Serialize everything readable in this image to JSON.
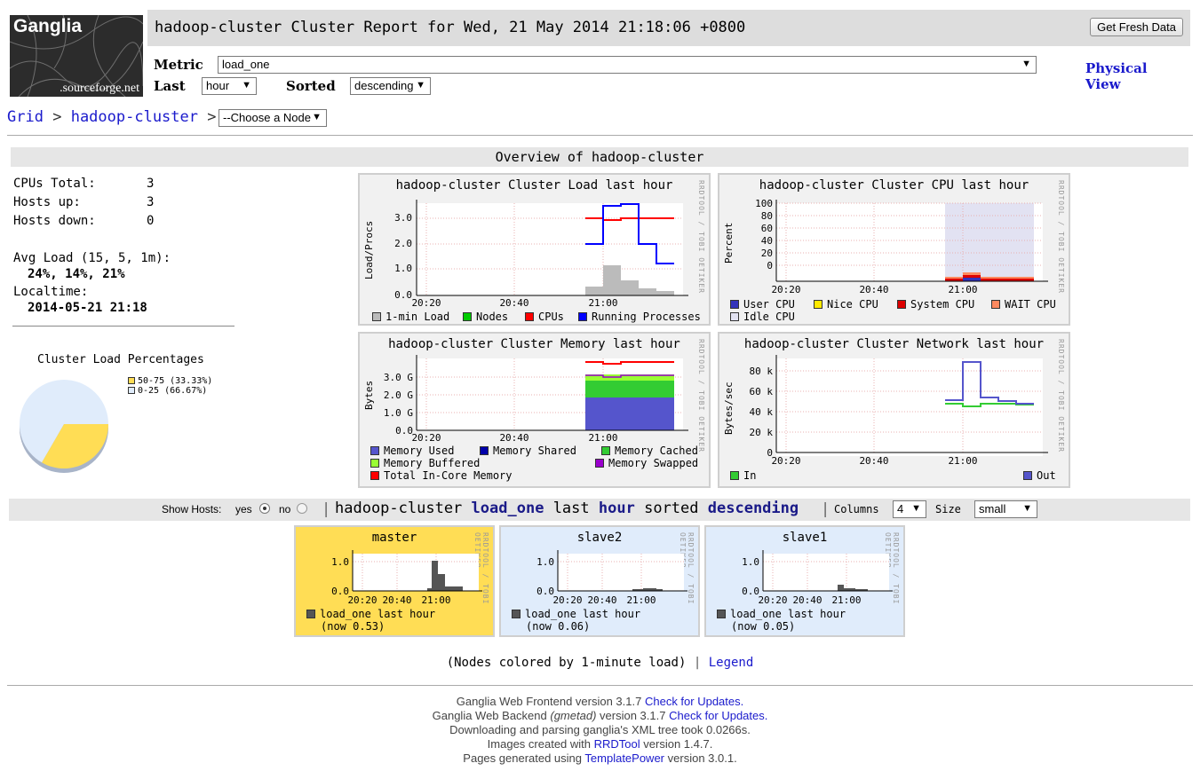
{
  "header": {
    "logo_text": "Ganglia",
    "logo_sub": ".sourceforge.net",
    "title": "hadoop-cluster Cluster Report for Wed, 21 May 2014 21:18:06 +0800",
    "fresh_button": "Get Fresh Data",
    "metric_label": "Metric",
    "metric_value": "load_one",
    "last_label": "Last",
    "last_value": "hour",
    "sorted_label": "Sorted",
    "sorted_value": "descending",
    "physical_view_1": "Physical",
    "physical_view_2": "View"
  },
  "breadcrumb": {
    "grid": "Grid",
    "sep1": ">",
    "cluster": "hadoop-cluster",
    "sep2": ">",
    "node_select": "--Choose a Node"
  },
  "overview": {
    "title": "Overview of hadoop-cluster",
    "cpus_total_label": "CPUs Total:",
    "cpus_total": "3",
    "hosts_up_label": "Hosts up:",
    "hosts_up": "3",
    "hosts_down_label": "Hosts down:",
    "hosts_down": "0",
    "avg_load_label": "Avg Load (15, 5, 1m):",
    "avg_load": "24%, 14%, 21%",
    "localtime_label": "Localtime:",
    "localtime": "2014-05-21 21:18"
  },
  "pie": {
    "title": "Cluster Load Percentages",
    "slices": [
      {
        "label": "50-75 (33.33%)",
        "value": 33.33,
        "color": "#ffdd55"
      },
      {
        "label": "0-25 (66.67%)",
        "value": 66.67,
        "color": "#e0ecfb"
      }
    ]
  },
  "graphs": {
    "rrd_credit": "RRDTOOL / TOBI OETIKER",
    "load": {
      "title": "hadoop-cluster Cluster Load last hour",
      "ylabel": "Load/Procs",
      "yticks": [
        "3.0",
        "2.0",
        "1.0",
        "0.0"
      ],
      "xticks": [
        "20:20",
        "20:40",
        "21:00"
      ],
      "legend": [
        {
          "label": "1-min Load",
          "color": "#bbbbbb"
        },
        {
          "label": "Nodes",
          "color": "#00cc00"
        },
        {
          "label": "CPUs",
          "color": "#ff0000"
        },
        {
          "label": "Running Processes",
          "color": "#0000ff"
        }
      ]
    },
    "cpu": {
      "title": "hadoop-cluster Cluster CPU last hour",
      "ylabel": "Percent",
      "yticks": [
        "100",
        "80",
        "60",
        "40",
        "20",
        "0"
      ],
      "xticks": [
        "20:20",
        "20:40",
        "21:00"
      ],
      "legend": [
        {
          "label": "User CPU",
          "color": "#3333bb"
        },
        {
          "label": "Nice CPU",
          "color": "#ffea00"
        },
        {
          "label": "System CPU",
          "color": "#dd0000"
        },
        {
          "label": "WAIT CPU",
          "color": "#ff8a60"
        },
        {
          "label": "Idle CPU",
          "color": "#e2e2f2"
        }
      ]
    },
    "memory": {
      "title": "hadoop-cluster Cluster Memory last hour",
      "ylabel": "Bytes",
      "yticks": [
        "3.0 G",
        "2.0 G",
        "1.0 G",
        "0.0"
      ],
      "xticks": [
        "20:20",
        "20:40",
        "21:00"
      ],
      "legend": [
        {
          "label": "Memory Used",
          "color": "#5555cc"
        },
        {
          "label": "Memory Shared",
          "color": "#0000aa"
        },
        {
          "label": "Memory Cached",
          "color": "#33cc33"
        },
        {
          "label": "Memory Buffered",
          "color": "#99ff33"
        },
        {
          "label": "Memory Swapped",
          "color": "#9900cc"
        },
        {
          "label": "Total In-Core Memory",
          "color": "#ff0000"
        }
      ]
    },
    "network": {
      "title": "hadoop-cluster Cluster Network last hour",
      "ylabel": "Bytes/sec",
      "yticks": [
        "80 k",
        "60 k",
        "40 k",
        "20 k",
        "0"
      ],
      "xticks": [
        "20:20",
        "20:40",
        "21:00"
      ],
      "legend": [
        {
          "label": "In",
          "color": "#33cc33"
        },
        {
          "label": "Out",
          "color": "#5555cc"
        }
      ]
    }
  },
  "hosts_bar": {
    "show_hosts": "Show Hosts:",
    "yes": "yes",
    "no": "no",
    "sep": "|",
    "w_cluster": "hadoop-cluster",
    "w_metric": "load_one",
    "w_last": "last",
    "w_range": "hour",
    "w_sorted": "sorted",
    "w_order": "descending",
    "columns_label": "Columns",
    "columns_value": "4",
    "size_label": "Size",
    "size_value": "small"
  },
  "hosts": [
    {
      "name": "master",
      "yticks": [
        "1.0",
        "0.0"
      ],
      "xticks": [
        "20:20",
        "20:40",
        "21:00"
      ],
      "legend": "load_one last hour",
      "now": "(now 0.53)",
      "bg": "#ffdd55"
    },
    {
      "name": "slave2",
      "yticks": [
        "1.0",
        "0.0"
      ],
      "xticks": [
        "20:20",
        "20:40",
        "21:00"
      ],
      "legend": "load_one last hour",
      "now": "(now 0.06)",
      "bg": "#e0ecfb"
    },
    {
      "name": "slave1",
      "yticks": [
        "1.0",
        "0.0"
      ],
      "xticks": [
        "20:20",
        "20:40",
        "21:00"
      ],
      "legend": "load_one last hour",
      "now": "(now 0.05)",
      "bg": "#e0ecfb"
    }
  ],
  "legend_note": {
    "text": "(Nodes colored by 1-minute load)",
    "sep": "|",
    "link": "Legend"
  },
  "footer": {
    "l1a": "Ganglia Web Frontend version 3.1.7",
    "l1b": "Check for Updates.",
    "l2a": "Ganglia Web Backend",
    "l2b": "(gmetad)",
    "l2c": "version 3.1.7",
    "l2d": "Check for Updates.",
    "l3": "Downloading and parsing ganglia's XML tree took 0.0266s.",
    "l4a": "Images created with",
    "l4b": "RRDTool",
    "l4c": "version 1.4.7.",
    "l5a": "Pages generated using",
    "l5b": "TemplatePower",
    "l5c": "version 3.0.1."
  }
}
